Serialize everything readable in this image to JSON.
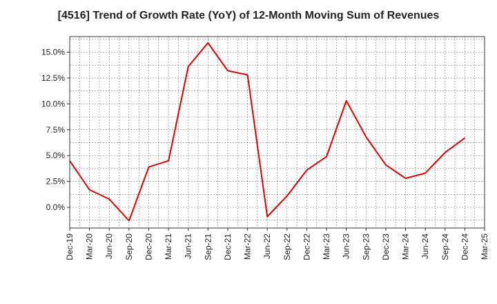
{
  "chart_data": {
    "type": "line",
    "title": "[4516]  Trend of Growth Rate (YoY) of 12-Month Moving Sum of Revenues",
    "xlabel": "",
    "ylabel": "",
    "categories": [
      "Dec-19",
      "Mar-20",
      "Jun-20",
      "Sep-20",
      "Dec-20",
      "Mar-21",
      "Jun-21",
      "Sep-21",
      "Dec-21",
      "Mar-22",
      "Jun-22",
      "Sep-22",
      "Dec-22",
      "Mar-23",
      "Jun-23",
      "Sep-23",
      "Dec-23",
      "Mar-24",
      "Jun-24",
      "Sep-24",
      "Dec-24",
      "Mar-25"
    ],
    "series": [
      {
        "values": [
          4.5,
          1.7,
          0.8,
          -1.3,
          3.9,
          4.5,
          13.6,
          15.9,
          13.2,
          12.8,
          -0.9,
          1.1,
          3.6,
          4.9,
          10.3,
          6.8,
          4.1,
          2.8,
          3.3,
          5.3,
          6.7,
          null
        ]
      }
    ],
    "y_ticks": [
      "0.0%",
      "2.5%",
      "5.0%",
      "7.5%",
      "10.0%",
      "12.5%",
      "15.0%"
    ],
    "y_tick_values": [
      0,
      2.5,
      5,
      7.5,
      10,
      12.5,
      15
    ],
    "ylim": [
      -2.0,
      16.5
    ],
    "grid": true,
    "line_color": "#e00000"
  }
}
